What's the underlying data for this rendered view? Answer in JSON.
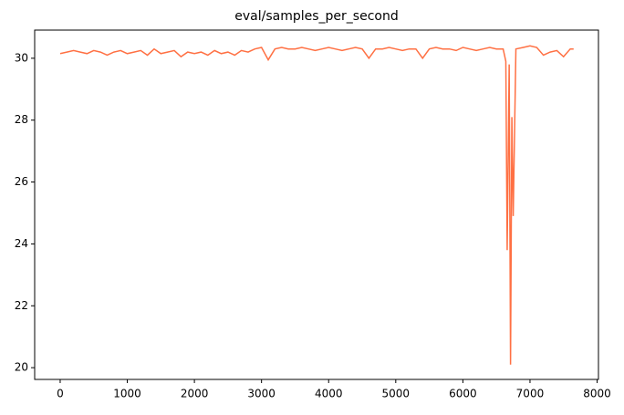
{
  "chart_data": {
    "type": "line",
    "title": "eval/samples_per_second",
    "x": [
      0,
      100,
      200,
      300,
      400,
      500,
      600,
      700,
      800,
      900,
      1000,
      1100,
      1200,
      1300,
      1400,
      1500,
      1600,
      1700,
      1800,
      1900,
      2000,
      2100,
      2200,
      2300,
      2400,
      2500,
      2600,
      2700,
      2800,
      2900,
      3000,
      3100,
      3200,
      3300,
      3400,
      3500,
      3600,
      3700,
      3800,
      3900,
      4000,
      4100,
      4200,
      4300,
      4400,
      4500,
      4600,
      4700,
      4800,
      4900,
      5000,
      5100,
      5200,
      5300,
      5400,
      5500,
      5600,
      5700,
      5800,
      5900,
      6000,
      6100,
      6200,
      6300,
      6400,
      6500,
      6600,
      6640,
      6660,
      6690,
      6710,
      6730,
      6750,
      6790,
      6900,
      7000,
      7100,
      7200,
      7300,
      7400,
      7500,
      7600,
      7650
    ],
    "series": [
      {
        "color": "#ff7043",
        "values": [
          30.15,
          30.2,
          30.25,
          30.2,
          30.15,
          30.25,
          30.2,
          30.1,
          30.2,
          30.25,
          30.15,
          30.2,
          30.25,
          30.1,
          30.3,
          30.15,
          30.2,
          30.25,
          30.05,
          30.2,
          30.15,
          30.2,
          30.1,
          30.25,
          30.15,
          30.2,
          30.1,
          30.25,
          30.2,
          30.3,
          30.35,
          29.95,
          30.3,
          30.35,
          30.3,
          30.3,
          30.35,
          30.3,
          30.25,
          30.3,
          30.35,
          30.3,
          30.25,
          30.3,
          30.35,
          30.3,
          30.0,
          30.3,
          30.3,
          30.35,
          30.3,
          30.25,
          30.3,
          30.3,
          30.0,
          30.3,
          30.35,
          30.3,
          30.3,
          30.25,
          30.35,
          30.3,
          30.25,
          30.3,
          30.35,
          30.3,
          30.3,
          29.9,
          23.8,
          29.8,
          20.1,
          28.1,
          24.9,
          30.3,
          30.35,
          30.4,
          30.35,
          30.1,
          30.2,
          30.25,
          30.05,
          30.3,
          30.3
        ]
      }
    ],
    "xlim": [
      -380,
      8020
    ],
    "xticks": [
      0,
      1000,
      2000,
      3000,
      4000,
      5000,
      6000,
      7000,
      8000
    ],
    "ylim": [
      19.62,
      30.91
    ],
    "yticks": [
      20,
      22,
      24,
      26,
      28,
      30
    ],
    "grid": false
  }
}
